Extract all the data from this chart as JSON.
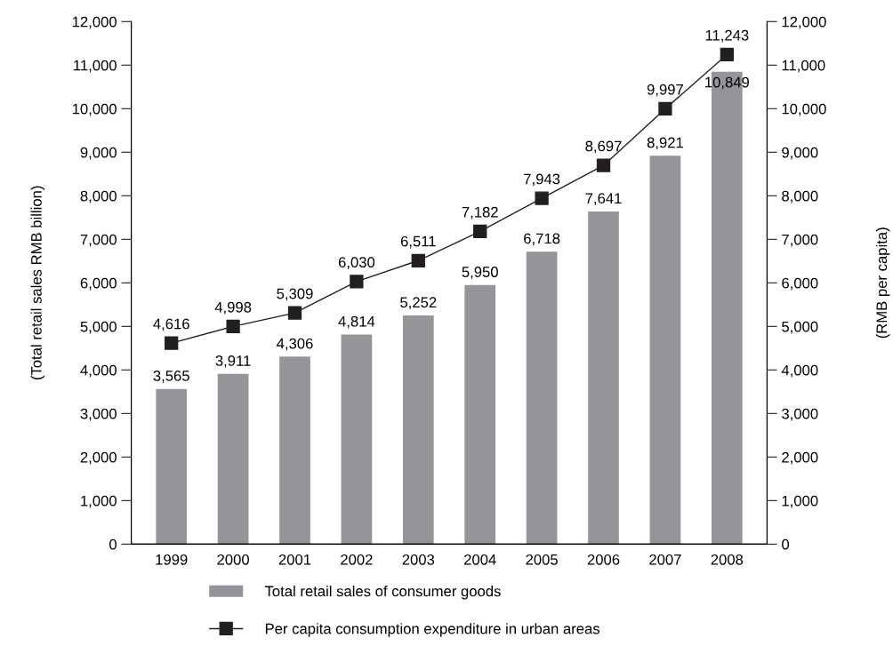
{
  "chart_data": {
    "type": "bar",
    "categories": [
      "1999",
      "2000",
      "2001",
      "2002",
      "2003",
      "2004",
      "2005",
      "2006",
      "2007",
      "2008"
    ],
    "ylabel": "(Total retail sales RMB billion)",
    "y2label": "(RMB per capita)",
    "series": [
      {
        "name": "Total retail sales of consumer goods",
        "color": "#939598",
        "values": [
          3565,
          3911,
          4306,
          4814,
          5252,
          5950,
          6718,
          7641,
          8921,
          10849
        ],
        "value_labels": [
          "3,565",
          "3,911",
          "4,306",
          "4,814",
          "5,252",
          "5,950",
          "6,718",
          "7,641",
          "8,921",
          "10,849"
        ]
      },
      {
        "name": "Per capita consumption expenditure in urban areas",
        "type": "line",
        "axis": "y2",
        "color": "#231f20",
        "marker": "square",
        "values": [
          4616,
          4998,
          5309,
          6030,
          6511,
          7182,
          7943,
          8697,
          9997,
          11243
        ],
        "value_labels": [
          "4,616",
          "4,998",
          "5,309",
          "6,030",
          "6,511",
          "7,182",
          "7,943",
          "8,697",
          "9,997",
          "11,243"
        ]
      }
    ],
    "ylim": [
      0,
      12000
    ],
    "yticks": [
      {
        "value": 0,
        "label": "0"
      },
      {
        "value": 1000,
        "label": "1,000"
      },
      {
        "value": 2000,
        "label": "2,000"
      },
      {
        "value": 3000,
        "label": "3,000"
      },
      {
        "value": 4000,
        "label": "4,000"
      },
      {
        "value": 5000,
        "label": "5,000"
      },
      {
        "value": 6000,
        "label": "6,000"
      },
      {
        "value": 7000,
        "label": "7,000"
      },
      {
        "value": 8000,
        "label": "8,000"
      },
      {
        "value": 9000,
        "label": "9,000"
      },
      {
        "value": 10000,
        "label": "10,000"
      },
      {
        "value": 11000,
        "label": "11,000"
      },
      {
        "value": 12000,
        "label": "12,000"
      }
    ],
    "y2lim": [
      0,
      12000
    ],
    "y2ticks": [
      {
        "value": 0,
        "label": "0"
      },
      {
        "value": 1000,
        "label": "1,000"
      },
      {
        "value": 2000,
        "label": "2,000"
      },
      {
        "value": 3000,
        "label": "3,000"
      },
      {
        "value": 4000,
        "label": "4,000"
      },
      {
        "value": 5000,
        "label": "5,000"
      },
      {
        "value": 6000,
        "label": "6,000"
      },
      {
        "value": 7000,
        "label": "7,000"
      },
      {
        "value": 8000,
        "label": "8,000"
      },
      {
        "value": 9000,
        "label": "9,000"
      },
      {
        "value": 10000,
        "label": "10,000"
      },
      {
        "value": 11000,
        "label": "11,000"
      },
      {
        "value": 12000,
        "label": "12,000"
      }
    ],
    "grid": false,
    "legend": "bottom",
    "line_style": "solid"
  }
}
